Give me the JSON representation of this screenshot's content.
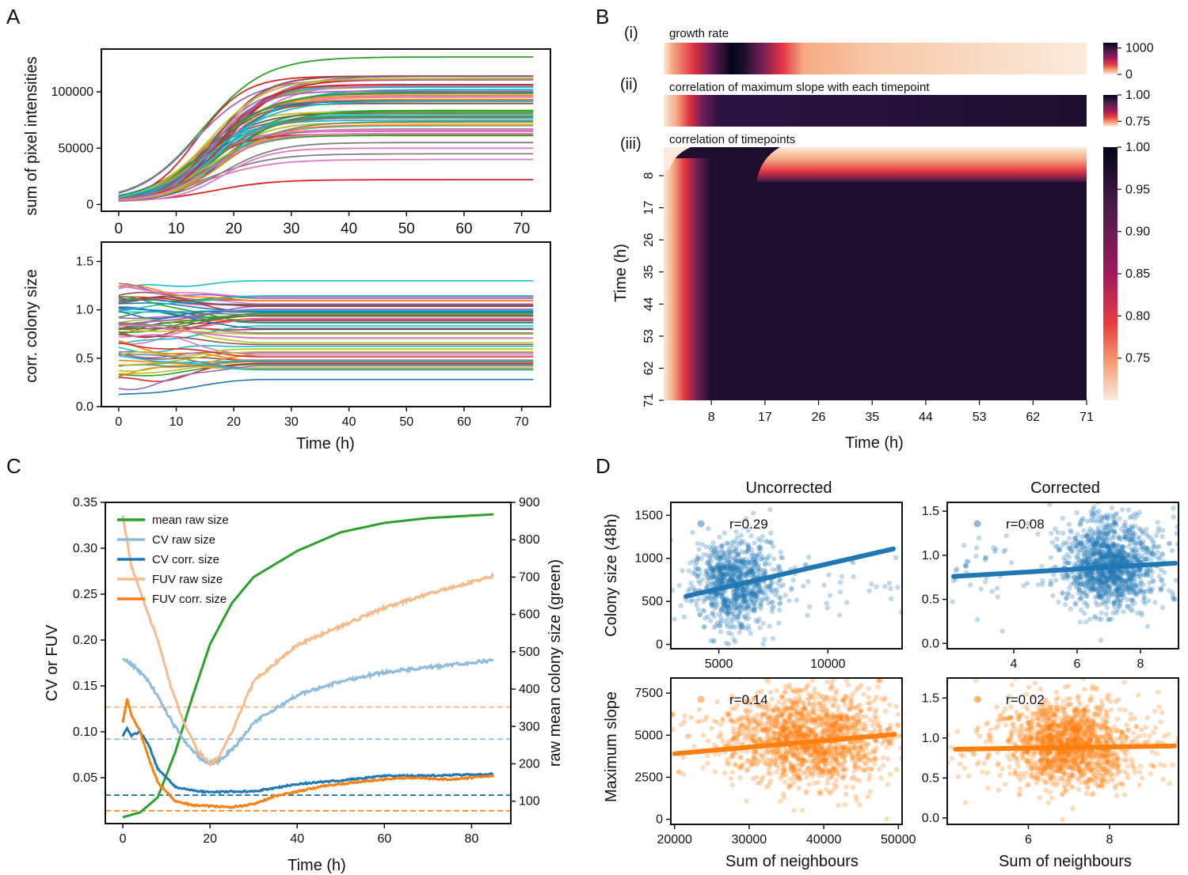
{
  "figure": {
    "panels": [
      "A",
      "B",
      "C",
      "D"
    ],
    "sub_labels": [
      "(i)",
      "(ii)",
      "(iii)"
    ]
  },
  "colors": {
    "blue": "#1f77b4",
    "light_blue": "#8fbbdc",
    "orange": "#ff7f0e",
    "light_orange": "#f5bb8a",
    "green": "#2ca02c",
    "red": "#d62728",
    "gray": "#7f7f7f",
    "pink": "#e377c2",
    "purple": "#9467bd",
    "olive": "#bcbd22",
    "cyan": "#17becf",
    "brown": "#8c564b"
  },
  "chart_data": [
    {
      "id": "A-top",
      "type": "line",
      "xlabel": "",
      "ylabel": "sum of pixel intensities",
      "xlim": [
        -3,
        75
      ],
      "ylim": [
        -6000,
        138000
      ],
      "xticks": [
        "0",
        "10",
        "20",
        "30",
        "40",
        "50",
        "60",
        "70"
      ],
      "yticks": [
        "0",
        "50000",
        "100000"
      ],
      "series_summary": {
        "count": 60,
        "final_values_range": [
          22000,
          131000
        ],
        "start_value": 2500,
        "midpoint_time_range": [
          13,
          19
        ],
        "highlighted": [
          {
            "name": "green top",
            "final": 131000
          },
          {
            "name": "red bottom",
            "final": 22000
          }
        ]
      }
    },
    {
      "id": "A-bottom",
      "type": "line",
      "xlabel": "Time (h)",
      "ylabel": "corr. colony size",
      "xlim": [
        -3,
        75
      ],
      "ylim": [
        0,
        1.7
      ],
      "xticks": [
        "0",
        "10",
        "20",
        "30",
        "40",
        "50",
        "60",
        "70"
      ],
      "yticks": [
        "0.0",
        "0.5",
        "1.0",
        "1.5"
      ],
      "series_summary": {
        "count": 60,
        "final_values_range": [
          0.28,
          1.3
        ],
        "settles_by_h": 25
      }
    },
    {
      "id": "B",
      "type": "heatmap",
      "xlabel": "Time (h)",
      "ylabel": "Time (h)",
      "xticks": [
        "8",
        "17",
        "26",
        "35",
        "44",
        "53",
        "62",
        "71"
      ],
      "yticks": [
        "8",
        "17",
        "26",
        "35",
        "44",
        "53",
        "62",
        "71"
      ],
      "strips": [
        {
          "title": "growth rate",
          "colorbar_ticks": [
            "1000",
            "0"
          ],
          "range": [
            0,
            1200
          ],
          "peak_time_h": 11
        },
        {
          "title": "correlation of maximum slope with each timepoint",
          "colorbar_ticks": [
            "1.00",
            "0.75"
          ],
          "range": [
            0.7,
            1.0
          ]
        }
      ],
      "matrix": {
        "title": "correlation of timepoints",
        "colorbar_ticks": [
          "1.00",
          "0.95",
          "0.90",
          "0.85",
          "0.80",
          "0.75"
        ],
        "range": [
          0.7,
          1.0
        ]
      }
    },
    {
      "id": "C",
      "type": "line",
      "xlabel": "Time (h)",
      "ylabel": "CV or FUV",
      "ylabel_right": "raw mean colony size (green)",
      "xlim": [
        -4,
        89
      ],
      "ylim": [
        0,
        0.35
      ],
      "ylim_right": [
        40,
        900
      ],
      "xticks": [
        "0",
        "20",
        "40",
        "60",
        "80"
      ],
      "yticks": [
        "0.05",
        "0.10",
        "0.15",
        "0.20",
        "0.25",
        "0.30",
        "0.35"
      ],
      "yticks_right": [
        "100",
        "200",
        "300",
        "400",
        "500",
        "600",
        "700",
        "800",
        "900"
      ],
      "legend": [
        "mean raw size",
        "CV raw size",
        "CV corr. size",
        "FUV raw size",
        "FUV corr. size"
      ],
      "series": [
        {
          "name": "mean raw size",
          "axis": "right",
          "x": [
            0,
            4,
            8,
            12,
            16,
            20,
            25,
            30,
            40,
            50,
            60,
            70,
            85
          ],
          "values": [
            57,
            70,
            110,
            230,
            380,
            520,
            630,
            700,
            770,
            820,
            845,
            858,
            868
          ]
        },
        {
          "name": "CV raw size",
          "x": [
            0,
            3,
            6,
            9,
            12,
            15,
            18,
            20,
            22,
            26,
            30,
            40,
            50,
            60,
            70,
            85
          ],
          "values": [
            0.18,
            0.17,
            0.155,
            0.13,
            0.105,
            0.085,
            0.07,
            0.066,
            0.068,
            0.085,
            0.11,
            0.14,
            0.155,
            0.165,
            0.17,
            0.178
          ]
        },
        {
          "name": "CV corr. size",
          "x": [
            0,
            1,
            2,
            4,
            6,
            8,
            12,
            16,
            20,
            25,
            30,
            40,
            50,
            60,
            70,
            85
          ],
          "values": [
            0.095,
            0.104,
            0.096,
            0.1,
            0.085,
            0.06,
            0.04,
            0.036,
            0.034,
            0.035,
            0.035,
            0.043,
            0.047,
            0.052,
            0.052,
            0.054
          ]
        },
        {
          "name": "FUV raw size",
          "x": [
            0,
            2,
            5,
            8,
            11,
            14,
            17,
            20,
            22,
            25,
            30,
            40,
            50,
            60,
            70,
            85
          ],
          "values": [
            0.335,
            0.28,
            0.24,
            0.2,
            0.15,
            0.11,
            0.08,
            0.065,
            0.072,
            0.1,
            0.155,
            0.195,
            0.215,
            0.235,
            0.25,
            0.27
          ]
        },
        {
          "name": "FUV corr. size",
          "x": [
            0,
            1,
            2,
            4,
            6,
            8,
            12,
            16,
            20,
            25,
            30,
            35,
            45,
            55,
            65,
            75,
            85
          ],
          "values": [
            0.11,
            0.136,
            0.118,
            0.1,
            0.07,
            0.045,
            0.025,
            0.02,
            0.019,
            0.018,
            0.021,
            0.03,
            0.04,
            0.046,
            0.05,
            0.048,
            0.052
          ]
        }
      ],
      "hlines": [
        {
          "name": "FUV raw baseline",
          "y": 0.127
        },
        {
          "name": "CV raw baseline",
          "y": 0.092
        },
        {
          "name": "CV corr. baseline",
          "y": 0.031
        },
        {
          "name": "FUV corr. baseline",
          "y": 0.014
        }
      ]
    },
    {
      "id": "D-top-left",
      "type": "scatter",
      "title": "Uncorrected",
      "ylabel": "Colony size (48h)",
      "annotation": "r=0.29",
      "xlim": [
        2800,
        13400
      ],
      "ylim": [
        -50,
        1650
      ],
      "xticks": [
        "5000",
        "10000"
      ],
      "yticks": [
        "0",
        "500",
        "1000",
        "1500"
      ],
      "cloud": {
        "center": [
          5700,
          720
        ],
        "spread": [
          900,
          260
        ]
      },
      "fit": {
        "x": [
          3500,
          13000
        ],
        "y": [
          560,
          1110
        ]
      }
    },
    {
      "id": "D-top-right",
      "type": "scatter",
      "title": "Corrected",
      "annotation": "r=0.08",
      "xlim": [
        1.9,
        9.2
      ],
      "ylim": [
        -0.06,
        1.6
      ],
      "xticks": [
        "4",
        "6",
        "8"
      ],
      "yticks": [
        "0.0",
        "0.5",
        "1.0",
        "1.5"
      ],
      "cloud": {
        "center": [
          7.0,
          0.88
        ],
        "spread": [
          0.7,
          0.25
        ]
      },
      "fit": {
        "x": [
          2.1,
          9.1
        ],
        "y": [
          0.76,
          0.91
        ]
      }
    },
    {
      "id": "D-bottom-left",
      "type": "scatter",
      "xlabel": "Sum of neighbours",
      "ylabel": "Maximum slope",
      "annotation": "r=0.14",
      "xlim": [
        19500,
        50500
      ],
      "ylim": [
        -300,
        8400
      ],
      "xticks": [
        "20000",
        "30000",
        "40000",
        "50000"
      ],
      "yticks": [
        "0",
        "2500",
        "5000",
        "7500"
      ],
      "cloud": {
        "center": [
          38000,
          4800
        ],
        "spread": [
          5200,
          1400
        ]
      },
      "fit": {
        "x": [
          20000,
          49500
        ],
        "y": [
          3900,
          5050
        ]
      }
    },
    {
      "id": "D-bottom-right",
      "type": "scatter",
      "xlabel": "Sum of neighbours",
      "annotation": "r=0.02",
      "xlim": [
        4.0,
        9.7
      ],
      "ylim": [
        -0.08,
        1.75
      ],
      "xticks": [
        "6",
        "8"
      ],
      "yticks": [
        "0.0",
        "0.5",
        "1.0",
        "1.5"
      ],
      "cloud": {
        "center": [
          7.0,
          0.92
        ],
        "spread": [
          0.75,
          0.28
        ]
      },
      "fit": {
        "x": [
          4.2,
          9.6
        ],
        "y": [
          0.86,
          0.9
        ]
      }
    }
  ]
}
